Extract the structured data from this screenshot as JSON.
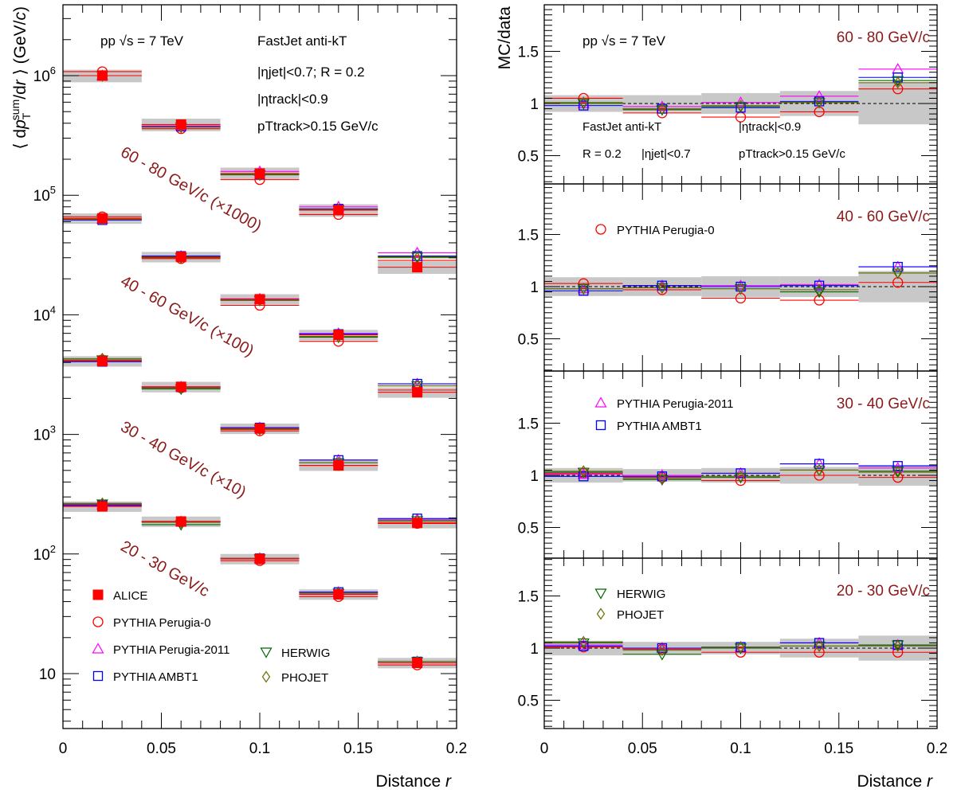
{
  "chart_data": [
    {
      "type": "scatter",
      "title": "",
      "xlabel": "Distance r",
      "ylabel": "⟨ dpTsum/dr ⟩ (GeV/c)",
      "yscale": "log",
      "xlim": [
        0,
        0.2
      ],
      "ylim": [
        4.5,
        5000000
      ],
      "x": [
        0.02,
        0.06,
        0.1,
        0.14,
        0.18
      ],
      "x_bins": [
        [
          0,
          0.04
        ],
        [
          0.04,
          0.08
        ],
        [
          0.08,
          0.12
        ],
        [
          0.12,
          0.16
        ],
        [
          0.16,
          0.2
        ]
      ],
      "x_tick_labels": [
        "0",
        "0.05",
        "0.1",
        "0.15",
        "0.2"
      ],
      "y_tick_labels": [
        "10",
        "10²",
        "10³",
        "10⁴",
        "10⁵",
        "10⁶"
      ],
      "y_tick_values": [
        10,
        100,
        1000,
        10000,
        100000,
        1000000
      ],
      "text_labels": {
        "energy": "pp √s = 7 TeV",
        "algorithm": "FastJet anti-kT",
        "eta_jet": "|ηjet|<0.7; R = 0.2",
        "eta_track": "|ηtrack|<0.9",
        "pt_track": "pTtrack>0.15 GeV/c"
      },
      "bin_labels": [
        "60 - 80 GeV/c (×1000)",
        "40 - 60 GeV/c (×100)",
        "30 - 40 GeV/c (×10)",
        "20 - 30 GeV/c"
      ],
      "groups": [
        {
          "label": "60 - 80 GeV/c (×1000)",
          "series": [
            {
              "name": "ALICE",
              "values": [
                1000000,
                390000,
                152000,
                75000,
                25000
              ],
              "sys_error_frac": 0.12
            },
            {
              "name": "PYTHIA Perugia-0",
              "values": [
                1080000,
                360000,
                135000,
                69000,
                28500
              ]
            },
            {
              "name": "PYTHIA Perugia-2011",
              "values": [
                1000000,
                380000,
                158000,
                80000,
                33000
              ]
            },
            {
              "name": "PYTHIA AMBT1",
              "values": [
                1000000,
                375000,
                150000,
                77000,
                31000
              ]
            },
            {
              "name": "HERWIG",
              "values": [
                1000000,
                370000,
                148000,
                76000,
                30500
              ]
            },
            {
              "name": "PHOJET",
              "values": [
                1000000,
                372000,
                150000,
                76000,
                30000
              ]
            }
          ]
        },
        {
          "label": "40 - 60 GeV/c (×100)",
          "series": [
            {
              "name": "ALICE",
              "values": [
                64000,
                30500,
                13500,
                6800,
                2250
              ],
              "sys_error_frac": 0.1
            },
            {
              "name": "PYTHIA Perugia-0",
              "values": [
                66000,
                29500,
                12000,
                6000,
                2350
              ]
            },
            {
              "name": "PYTHIA Perugia-2011",
              "values": [
                63000,
                31000,
                13600,
                7000,
                2650
              ]
            },
            {
              "name": "PYTHIA AMBT1",
              "values": [
                62000,
                31000,
                13500,
                6900,
                2650
              ]
            },
            {
              "name": "HERWIG",
              "values": [
                63000,
                30000,
                13200,
                6500,
                2550
              ]
            },
            {
              "name": "PHOJET",
              "values": [
                63000,
                30500,
                13200,
                6600,
                2550
              ]
            }
          ]
        },
        {
          "label": "30 - 40 GeV/c (×10)",
          "series": [
            {
              "name": "ALICE",
              "values": [
                4100,
                2500,
                1120,
                550,
                182
              ],
              "sys_error_frac": 0.1
            },
            {
              "name": "PYTHIA Perugia-0",
              "values": [
                4200,
                2450,
                1070,
                550,
                180
              ]
            },
            {
              "name": "PYTHIA Perugia-2011",
              "values": [
                4150,
                2500,
                1140,
                610,
                195
              ]
            },
            {
              "name": "PYTHIA AMBT1",
              "values": [
                4050,
                2480,
                1140,
                610,
                198
              ]
            },
            {
              "name": "HERWIG",
              "values": [
                4200,
                2400,
                1100,
                580,
                190
              ]
            },
            {
              "name": "PHOJET",
              "values": [
                4300,
                2450,
                1110,
                580,
                188
              ]
            }
          ]
        },
        {
          "label": "20 - 30 GeV/c",
          "series": [
            {
              "name": "ALICE",
              "values": [
                250,
                187,
                91,
                46,
                12.3
              ],
              "sys_error_frac": 0.1
            },
            {
              "name": "PYTHIA Perugia-0",
              "values": [
                253,
                185,
                88,
                44,
                11.8
              ]
            },
            {
              "name": "PYTHIA Perugia-2011",
              "values": [
                258,
                187,
                92,
                48,
                12.6
              ]
            },
            {
              "name": "PYTHIA AMBT1",
              "values": [
                255,
                187,
                92,
                48,
                12.6
              ]
            },
            {
              "name": "HERWIG",
              "values": [
                262,
                176,
                91,
                47,
                12.6
              ]
            },
            {
              "name": "PHOJET",
              "values": [
                265,
                184,
                92,
                47,
                12.6
              ]
            }
          ]
        }
      ],
      "legend": [
        {
          "name": "ALICE",
          "marker": "filled-square",
          "color": "#ff0000"
        },
        {
          "name": "PYTHIA Perugia-0",
          "marker": "open-circle",
          "color": "#ff0000"
        },
        {
          "name": "PYTHIA Perugia-2011",
          "marker": "open-triangle-up",
          "color": "#ff00ff"
        },
        {
          "name": "PYTHIA AMBT1",
          "marker": "open-square",
          "color": "#0000ff"
        },
        {
          "name": "HERWIG",
          "marker": "open-triangle-down",
          "color": "#006400"
        },
        {
          "name": "PHOJET",
          "marker": "open-diamond",
          "color": "#6b6b00"
        }
      ],
      "legend_placement": "bottom-left",
      "grid": false
    },
    {
      "type": "scatter",
      "title": "",
      "xlabel": "Distance r",
      "ylabel": "MC/data",
      "xlim": [
        0,
        0.2
      ],
      "ylim": [
        0.2,
        2.0
      ],
      "x": [
        0.02,
        0.06,
        0.1,
        0.14,
        0.18
      ],
      "x_tick_labels": [
        "0",
        "0.05",
        "0.1",
        "0.15",
        "0.2"
      ],
      "y_tick_labels": [
        "0.5",
        "1",
        "1.5"
      ],
      "y_tick_values": [
        0.5,
        1.0,
        1.5
      ],
      "reference_line": 1.0,
      "text_labels": {
        "energy": "pp √s = 7 TeV",
        "algorithm": "FastJet anti-kT",
        "radius": "R = 0.2",
        "eta_jet": "|ηjet|<0.7",
        "eta_track": "|ηtrack|<0.9",
        "pt_track": "pTtrack>0.15 GeV/c"
      },
      "panels": [
        {
          "label": "60 - 80 GeV/c",
          "data_uncertainty_band": [
            0.08,
            0.08,
            0.1,
            0.12,
            0.2
          ],
          "series": [
            {
              "name": "PYTHIA Perugia-0",
              "values": [
                1.05,
                0.91,
                0.87,
                0.92,
                1.14
              ]
            },
            {
              "name": "PYTHIA Perugia-2011",
              "values": [
                1.0,
                0.97,
                1.01,
                1.07,
                1.33
              ]
            },
            {
              "name": "PYTHIA AMBT1",
              "values": [
                0.98,
                0.95,
                0.96,
                1.02,
                1.25
              ]
            },
            {
              "name": "HERWIG",
              "values": [
                1.0,
                0.94,
                0.97,
                1.01,
                1.22
              ]
            },
            {
              "name": "PHOJET",
              "values": [
                1.01,
                0.95,
                0.98,
                1.01,
                1.2
              ]
            }
          ]
        },
        {
          "label": "40 - 60 GeV/c",
          "data_uncertainty_band": [
            0.09,
            0.09,
            0.1,
            0.1,
            0.15
          ],
          "series": [
            {
              "name": "PYTHIA Perugia-0",
              "values": [
                1.03,
                0.97,
                0.89,
                0.87,
                1.04
              ]
            },
            {
              "name": "PYTHIA Perugia-2011",
              "values": [
                0.98,
                1.01,
                1.01,
                1.02,
                1.19
              ]
            },
            {
              "name": "PYTHIA AMBT1",
              "values": [
                0.96,
                1.01,
                1.0,
                1.01,
                1.19
              ]
            },
            {
              "name": "HERWIG",
              "values": [
                0.98,
                0.99,
                0.98,
                0.95,
                1.13
              ]
            },
            {
              "name": "PHOJET",
              "values": [
                0.98,
                0.99,
                0.98,
                0.97,
                1.13
              ]
            }
          ]
        },
        {
          "label": "30 - 40 GeV/c",
          "data_uncertainty_band": [
            0.07,
            0.06,
            0.07,
            0.08,
            0.1
          ],
          "series": [
            {
              "name": "PYTHIA Perugia-0",
              "values": [
                1.02,
                0.98,
                0.95,
                1.0,
                0.98
              ]
            },
            {
              "name": "PYTHIA Perugia-2011",
              "values": [
                1.01,
                1.0,
                1.02,
                1.11,
                1.07
              ]
            },
            {
              "name": "PYTHIA AMBT1",
              "values": [
                0.99,
                0.99,
                1.02,
                1.11,
                1.09
              ]
            },
            {
              "name": "HERWIG",
              "values": [
                1.03,
                0.96,
                0.98,
                1.05,
                1.04
              ]
            },
            {
              "name": "PHOJET",
              "values": [
                1.04,
                0.97,
                0.99,
                1.05,
                1.03
              ]
            }
          ]
        },
        {
          "label": "20 - 30 GeV/c",
          "data_uncertainty_band": [
            0.07,
            0.06,
            0.06,
            0.09,
            0.12
          ],
          "series": [
            {
              "name": "PYTHIA Perugia-0",
              "values": [
                1.01,
                0.99,
                0.96,
                0.96,
                0.96
              ]
            },
            {
              "name": "PYTHIA Perugia-2011",
              "values": [
                1.03,
                1.0,
                1.01,
                1.05,
                1.03
              ]
            },
            {
              "name": "PYTHIA AMBT1",
              "values": [
                1.02,
                1.0,
                1.01,
                1.05,
                1.03
              ]
            },
            {
              "name": "HERWIG",
              "values": [
                1.05,
                0.94,
                1.0,
                1.02,
                1.03
              ]
            },
            {
              "name": "PHOJET",
              "values": [
                1.06,
                0.98,
                1.01,
                1.02,
                1.02
              ]
            }
          ]
        }
      ],
      "legend_entries": [
        {
          "panel": 1,
          "name": "PYTHIA Perugia-0"
        },
        {
          "panel": 2,
          "name": "PYTHIA Perugia-2011"
        },
        {
          "panel": 2,
          "name": "PYTHIA AMBT1"
        },
        {
          "panel": 3,
          "name": "HERWIG"
        },
        {
          "panel": 3,
          "name": "PHOJET"
        }
      ],
      "grid": false
    }
  ],
  "colors": {
    "label_dark_red": "#8b1a1a",
    "alice": "#ff0000",
    "perugia0": "#ff0000",
    "perugia2011": "#ff00ff",
    "ambt1": "#0000ff",
    "herwig": "#006400",
    "phojet": "#6b6b00",
    "sys_band": "#c8c8c8"
  }
}
